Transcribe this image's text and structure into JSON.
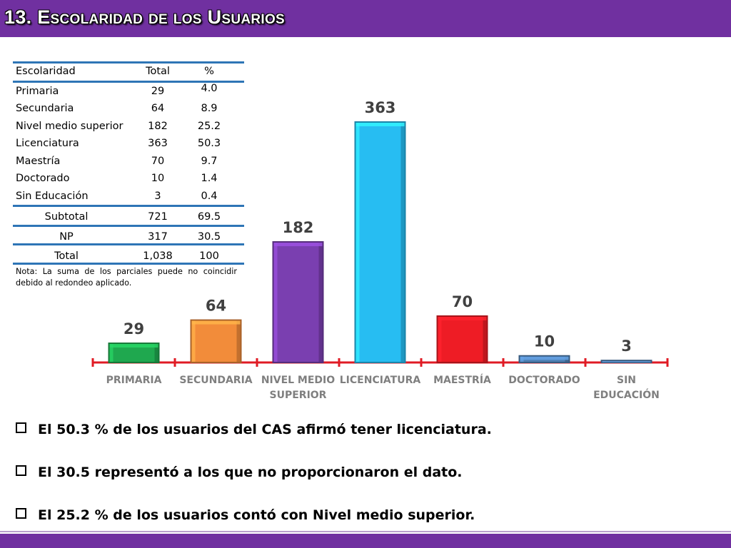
{
  "header": {
    "title": "13. Escolaridad de los Usuarios"
  },
  "table": {
    "headers": [
      "Escolaridad",
      "Total",
      "%"
    ],
    "rows": [
      [
        "Primaria",
        "29",
        "4.0"
      ],
      [
        "Secundaria",
        "64",
        "8.9"
      ],
      [
        "Nivel medio superior",
        "182",
        "25.2"
      ],
      [
        "Licenciatura",
        "363",
        "50.3"
      ],
      [
        "Maestría",
        "70",
        "9.7"
      ],
      [
        "Doctorado",
        "10",
        "1.4"
      ],
      [
        "Sin Educación",
        "3",
        "0.4"
      ]
    ],
    "summary": [
      [
        "Subtotal",
        "721",
        "69.5"
      ],
      [
        "NP",
        "317",
        "30.5"
      ],
      [
        "Total",
        "1,038",
        "100"
      ]
    ],
    "note": "Nota: La suma de los parciales puede no coincidir debido al redondeo aplicado."
  },
  "chart_data": {
    "type": "bar",
    "categories": [
      "PRIMARIA",
      "SECUNDARIA",
      "NIVEL MEDIO SUPERIOR",
      "LICENCIATURA",
      "MAESTRÍA",
      "DOCTORADO",
      "SIN EDUCACIÓN"
    ],
    "category_lines": [
      [
        "PRIMARIA"
      ],
      [
        "SECUNDARIA"
      ],
      [
        "NIVEL MEDIO",
        "SUPERIOR"
      ],
      [
        "LICENCIATURA"
      ],
      [
        "MAESTRÍA"
      ],
      [
        "DOCTORADO"
      ],
      [
        "SIN",
        "EDUCACIÓN"
      ]
    ],
    "values": [
      29,
      64,
      182,
      363,
      70,
      10,
      3
    ],
    "data_labels": [
      "29",
      "64",
      "182",
      "363",
      "70",
      "10",
      "3"
    ],
    "colors": [
      "#1fa84f",
      "#f28c3a",
      "#7a3fb0",
      "#27bdf2",
      "#ee1c25",
      "#4f7fb3",
      "#4f7fb3"
    ],
    "axis_color": "#e01b24",
    "label_color": "#7f7f7f",
    "title": "",
    "xlabel": "",
    "ylabel": "",
    "ylim": [
      0,
      363
    ],
    "grid": false,
    "legend": "none"
  },
  "bullets": [
    "El 50.3 % de los usuarios del CAS afirmó tener licenciatura.",
    "El 30.5 representó a los que no proporcionaron el dato.",
    "El 25.2 % de los usuarios contó con Nivel medio superior."
  ]
}
